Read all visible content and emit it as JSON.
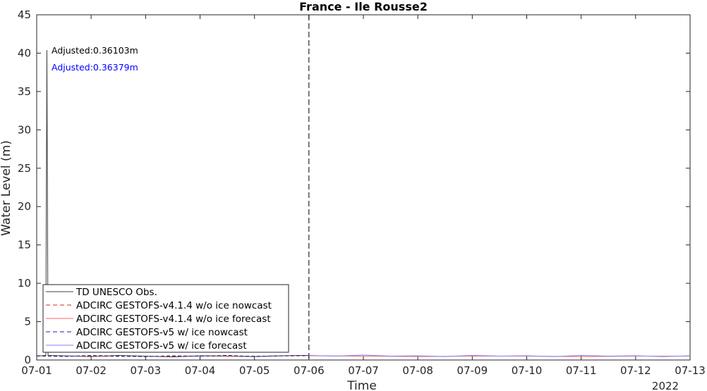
{
  "chart_data": {
    "type": "line",
    "title": "France - Ile Rousse2",
    "xlabel": "Time",
    "ylabel": "Water Level (m)",
    "x_ticks": [
      "07-01",
      "07-02",
      "07-03",
      "07-04",
      "07-05",
      "07-06",
      "07-07",
      "07-08",
      "07-09",
      "07-10",
      "07-11",
      "07-12",
      "07-13"
    ],
    "x_year_label": "2022",
    "xlim": [
      "2022-07-01",
      "2022-07-13"
    ],
    "ylim": [
      0,
      45
    ],
    "y_ticks": [
      0,
      5,
      10,
      15,
      20,
      25,
      30,
      35,
      40,
      45
    ],
    "grid": false,
    "nowcast_forecast_divider_x": "2022-07-06",
    "legend_position": "bottom-left",
    "annotations": [
      {
        "text": "Adjusted:0.36103m",
        "color": "#000000"
      },
      {
        "text": "Adjusted:0.36379m",
        "color": "#0000ff"
      }
    ],
    "series": [
      {
        "name": "TD UNESCO Obs.",
        "color": "#404040",
        "style": "solid",
        "x": [
          "2022-07-01T00:00",
          "2022-07-01T04:00",
          "2022-07-01T04:30",
          "2022-07-01T05:00",
          "2022-07-01T12:00",
          "2022-07-02T00:00",
          "2022-07-02T12:00",
          "2022-07-03T00:00",
          "2022-07-03T12:00",
          "2022-07-04T00:00",
          "2022-07-04T12:00",
          "2022-07-05T00:00",
          "2022-07-05T12:00",
          "2022-07-06T00:00"
        ],
        "y": [
          0.5,
          0.6,
          40.4,
          0.6,
          0.55,
          0.45,
          0.6,
          0.5,
          0.4,
          0.55,
          0.5,
          0.45,
          0.55,
          0.6
        ]
      },
      {
        "name": "ADCIRC GESTOFS-v4.1.4 w/o ice nowcast",
        "color": "#d62728",
        "style": "dashed",
        "x": [
          "2022-07-01T00:00",
          "2022-07-02T00:00",
          "2022-07-03T00:00",
          "2022-07-04T00:00",
          "2022-07-05T00:00",
          "2022-07-06T00:00"
        ],
        "y": [
          0.5,
          0.5,
          0.45,
          0.5,
          0.5,
          0.55
        ]
      },
      {
        "name": "ADCIRC GESTOFS-v4.1.4 w/o ice forecast",
        "color": "#ff6666",
        "style": "solid",
        "x": [
          "2022-07-06T00:00",
          "2022-07-07T00:00",
          "2022-07-08T00:00",
          "2022-07-09T00:00",
          "2022-07-10T00:00",
          "2022-07-11T00:00",
          "2022-07-12T00:00",
          "2022-07-13T00:00"
        ],
        "y": [
          0.55,
          0.5,
          0.45,
          0.5,
          0.5,
          0.45,
          0.5,
          0.5
        ]
      },
      {
        "name": "ADCIRC GESTOFS-v5 w/ ice nowcast",
        "color": "#1f1fb4",
        "style": "dashed",
        "x": [
          "2022-07-01T00:00",
          "2022-07-01T12:00",
          "2022-07-02T00:00",
          "2022-07-02T12:00",
          "2022-07-03T00:00",
          "2022-07-03T12:00",
          "2022-07-04T00:00",
          "2022-07-04T12:00",
          "2022-07-05T00:00",
          "2022-07-05T12:00",
          "2022-07-06T00:00"
        ],
        "y": [
          0.55,
          0.45,
          0.6,
          0.5,
          0.45,
          0.55,
          0.5,
          0.6,
          0.45,
          0.55,
          0.6
        ]
      },
      {
        "name": "ADCIRC GESTOFS-v5 w/ ice forecast",
        "color": "#8080ff",
        "style": "solid",
        "x": [
          "2022-07-06T00:00",
          "2022-07-06T12:00",
          "2022-07-07T00:00",
          "2022-07-07T12:00",
          "2022-07-08T00:00",
          "2022-07-08T12:00",
          "2022-07-09T00:00",
          "2022-07-09T12:00",
          "2022-07-10T00:00",
          "2022-07-10T12:00",
          "2022-07-11T00:00",
          "2022-07-11T12:00",
          "2022-07-12T00:00",
          "2022-07-12T12:00",
          "2022-07-13T00:00"
        ],
        "y": [
          0.6,
          0.5,
          0.65,
          0.5,
          0.55,
          0.45,
          0.6,
          0.5,
          0.55,
          0.45,
          0.6,
          0.5,
          0.55,
          0.45,
          0.55
        ]
      }
    ]
  }
}
